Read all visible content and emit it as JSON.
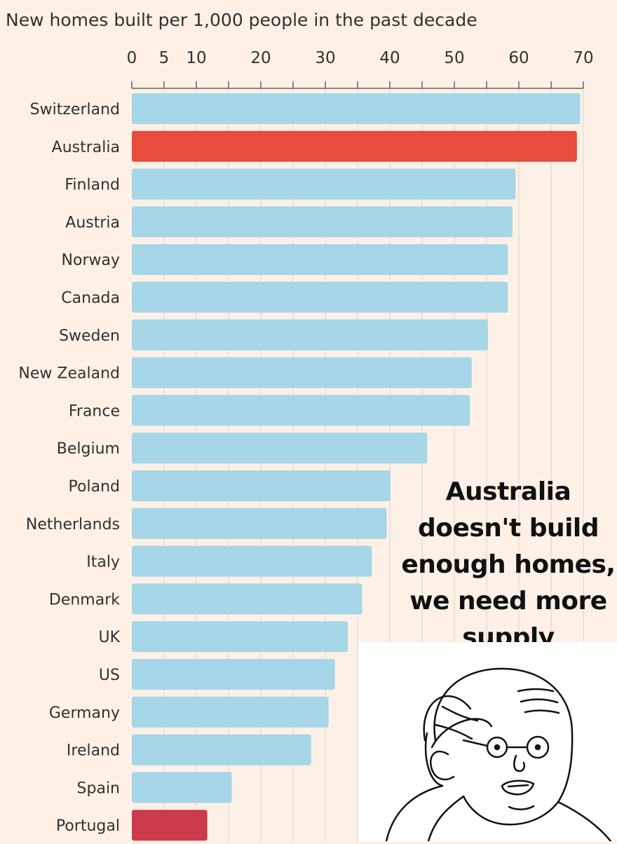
{
  "chart_data": {
    "type": "bar",
    "orientation": "horizontal",
    "title": "New homes built per 1,000 people in the past decade",
    "categories": [
      "Switzerland",
      "Australia",
      "Finland",
      "Austria",
      "Norway",
      "Canada",
      "Sweden",
      "New Zealand",
      "France",
      "Belgium",
      "Poland",
      "Netherlands",
      "Italy",
      "Denmark",
      "UK",
      "US",
      "Germany",
      "Ireland",
      "Spain",
      "Portugal"
    ],
    "values": [
      69.5,
      69,
      59.5,
      59,
      58.3,
      58.3,
      55.2,
      52.7,
      52.4,
      45.8,
      40.1,
      39.5,
      37.2,
      35.7,
      33.5,
      31.5,
      30.5,
      27.8,
      15.5,
      11.7
    ],
    "highlight": {
      "Australia": "#e74c3c",
      "Portugal": "#cc3b4b"
    },
    "bar_color": "#a6d6e7",
    "xlim": [
      0,
      70
    ],
    "xticks": [
      0,
      5,
      10,
      20,
      30,
      40,
      50,
      60,
      70
    ],
    "tick_labels": [
      "0",
      "5",
      "10",
      "20",
      "30",
      "40",
      "50",
      "60",
      "70"
    ],
    "grid": true
  },
  "caption": {
    "lines": [
      "Australia",
      "doesn't build",
      "enough homes,",
      "we need more",
      "supply"
    ]
  },
  "meme_icon": "wojak-thinking-face-icon"
}
